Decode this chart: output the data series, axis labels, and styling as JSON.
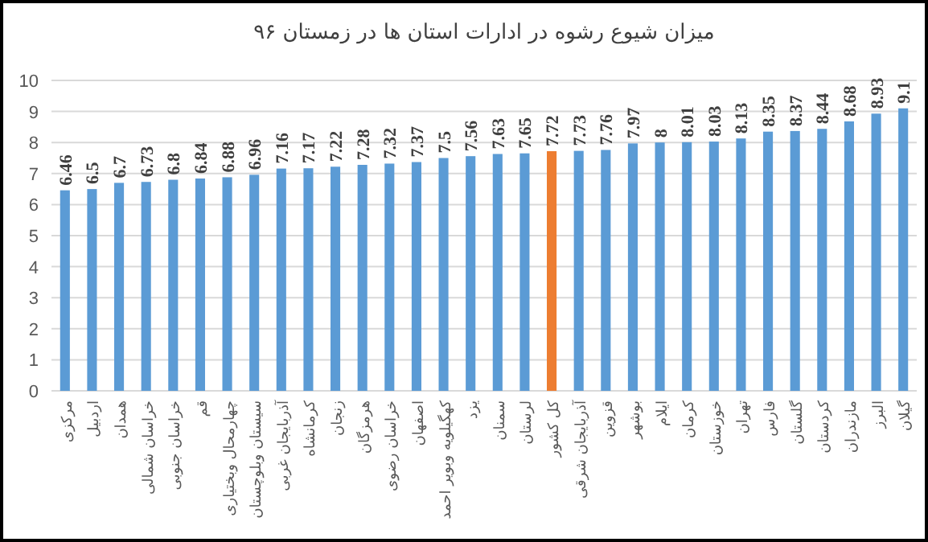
{
  "chart_data": {
    "type": "bar",
    "title": "میزان شیوع رشوه در ادارات استان ها در زمستان ۹۶",
    "categories": [
      "مرکزی",
      "اردبیل",
      "همدان",
      "خراسان شمالی",
      "خراسان جنوبی",
      "قم",
      "چهارمحال وبختیاری",
      "سیستان وبلوچستان",
      "آذربایجان غربی",
      "کرمانشاه",
      "زنجان",
      "هرمزگان",
      "خراسان رضوی",
      "اصفهان",
      "کهگیلویه وبویر احمد",
      "یزد",
      "سمنان",
      "لرستان",
      "کل کشور",
      "آذربایجان شرقی",
      "قزوین",
      "بوشهر",
      "ایلام",
      "کرمان",
      "خوزستان",
      "تهران",
      "فارس",
      "گلستان",
      "کردستان",
      "مازندران",
      "البرز",
      "گیلان"
    ],
    "values": [
      6.46,
      6.5,
      6.7,
      6.73,
      6.8,
      6.84,
      6.88,
      6.96,
      7.16,
      7.17,
      7.22,
      7.28,
      7.32,
      7.37,
      7.5,
      7.56,
      7.63,
      7.65,
      7.72,
      7.73,
      7.76,
      7.97,
      8,
      8.01,
      8.03,
      8.13,
      8.35,
      8.37,
      8.44,
      8.68,
      8.93,
      9.1
    ],
    "colors": [
      "#5b9bd5",
      "#5b9bd5",
      "#5b9bd5",
      "#5b9bd5",
      "#5b9bd5",
      "#5b9bd5",
      "#5b9bd5",
      "#5b9bd5",
      "#5b9bd5",
      "#5b9bd5",
      "#5b9bd5",
      "#5b9bd5",
      "#5b9bd5",
      "#5b9bd5",
      "#5b9bd5",
      "#5b9bd5",
      "#5b9bd5",
      "#5b9bd5",
      "#ed7d31",
      "#5b9bd5",
      "#5b9bd5",
      "#5b9bd5",
      "#5b9bd5",
      "#5b9bd5",
      "#5b9bd5",
      "#5b9bd5",
      "#5b9bd5",
      "#5b9bd5",
      "#5b9bd5",
      "#5b9bd5",
      "#5b9bd5",
      "#5b9bd5"
    ],
    "ylim": [
      0,
      10
    ],
    "yticks": [
      0,
      1,
      2,
      3,
      4,
      5,
      6,
      7,
      8,
      9,
      10
    ],
    "grid": "y",
    "data_labels": true
  }
}
